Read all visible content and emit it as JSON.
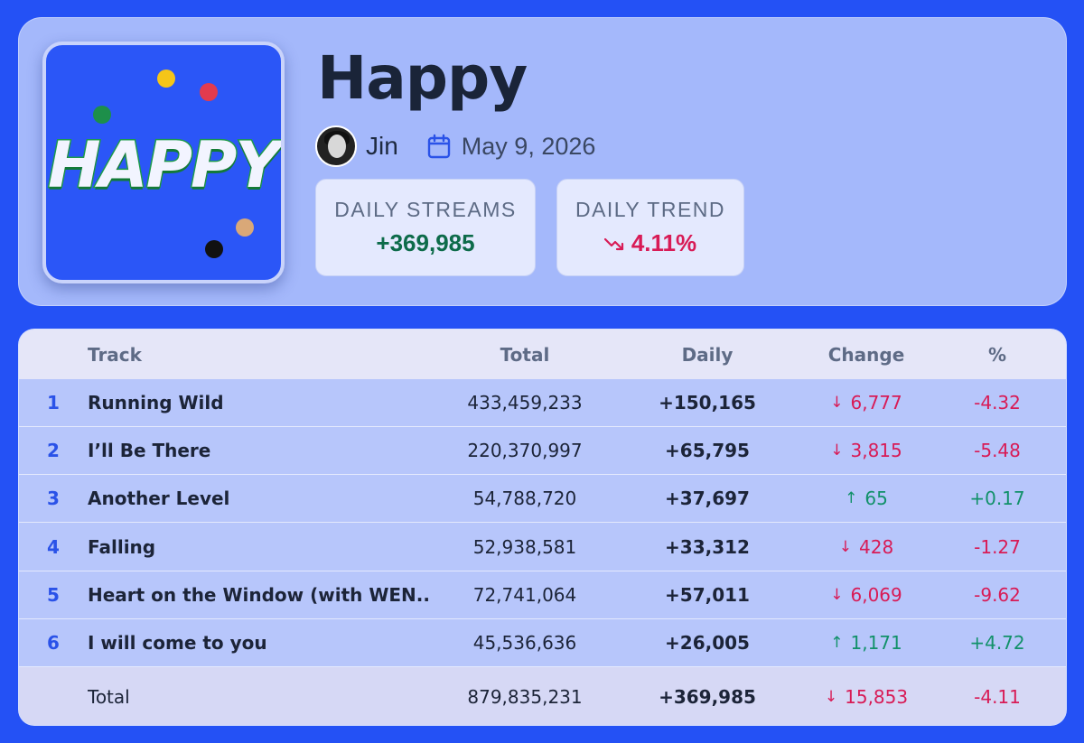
{
  "album": {
    "cover_text": "HAPPY",
    "title": "Happy",
    "artist": "Jin",
    "release_date": "May 9, 2026",
    "cover_colors": [
      "#2b56f7",
      "#f5c518",
      "#e23b4e",
      "#1d8f4a",
      "#d9a878",
      "#111111"
    ]
  },
  "stats": {
    "streams_label": "DAILY STREAMS",
    "streams_value": "+369,985",
    "trend_label": "DAILY TREND",
    "trend_value": "4.11%",
    "trend_icon": "trend-down-icon"
  },
  "table": {
    "headers": {
      "rank": "",
      "track": "Track",
      "total": "Total",
      "daily": "Daily",
      "change": "Change",
      "pct": "%"
    },
    "rows": [
      {
        "rank": "1",
        "track": "Running Wild",
        "total": "433,459,233",
        "daily": "+150,165",
        "change": "6,777",
        "change_dir": "down",
        "pct": "-4.32"
      },
      {
        "rank": "2",
        "track": "I’ll Be There",
        "total": "220,370,997",
        "daily": "+65,795",
        "change": "3,815",
        "change_dir": "down",
        "pct": "-5.48"
      },
      {
        "rank": "3",
        "track": "Another Level",
        "total": "54,788,720",
        "daily": "+37,697",
        "change": "65",
        "change_dir": "up",
        "pct": "+0.17"
      },
      {
        "rank": "4",
        "track": "Falling",
        "total": "52,938,581",
        "daily": "+33,312",
        "change": "428",
        "change_dir": "down",
        "pct": "-1.27"
      },
      {
        "rank": "5",
        "track": "Heart on the Window (with WEN...",
        "total": "72,741,064",
        "daily": "+57,011",
        "change": "6,069",
        "change_dir": "down",
        "pct": "-9.62"
      },
      {
        "rank": "6",
        "track": "I will come to you",
        "total": "45,536,636",
        "daily": "+26,005",
        "change": "1,171",
        "change_dir": "up",
        "pct": "+4.72"
      }
    ],
    "total": {
      "label": "Total",
      "total": "879,835,231",
      "daily": "+369,985",
      "change": "15,853",
      "change_dir": "down",
      "pct": "-4.11"
    }
  },
  "colors": {
    "background": "#2451f5",
    "up": "#12916a",
    "down": "#d81b56",
    "accent": "#2a52e8"
  }
}
